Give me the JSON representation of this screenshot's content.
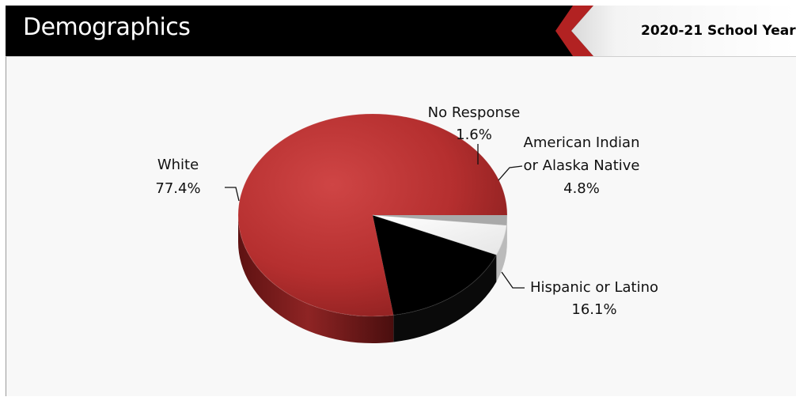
{
  "header": {
    "title": "Demographics",
    "school_year": "2020-21 School Year"
  },
  "colors": {
    "white": "#b52f2f",
    "hispanic": "#000000",
    "american_indian": "#ffffff",
    "no_response": "#a9a9a9"
  },
  "chart_data": {
    "type": "pie",
    "title": "",
    "slices": [
      {
        "name": "White",
        "value": 77.4,
        "label": "77.4%"
      },
      {
        "name": "Hispanic or Latino",
        "value": 16.1,
        "label": "16.1%"
      },
      {
        "name": "American Indian or Alaska Native",
        "name_lines": [
          "American Indian",
          "or Alaska Native"
        ],
        "value": 4.8,
        "label": "4.8%"
      },
      {
        "name": "No Response",
        "value": 1.6,
        "label": "1.6%"
      }
    ],
    "legend": "none"
  }
}
